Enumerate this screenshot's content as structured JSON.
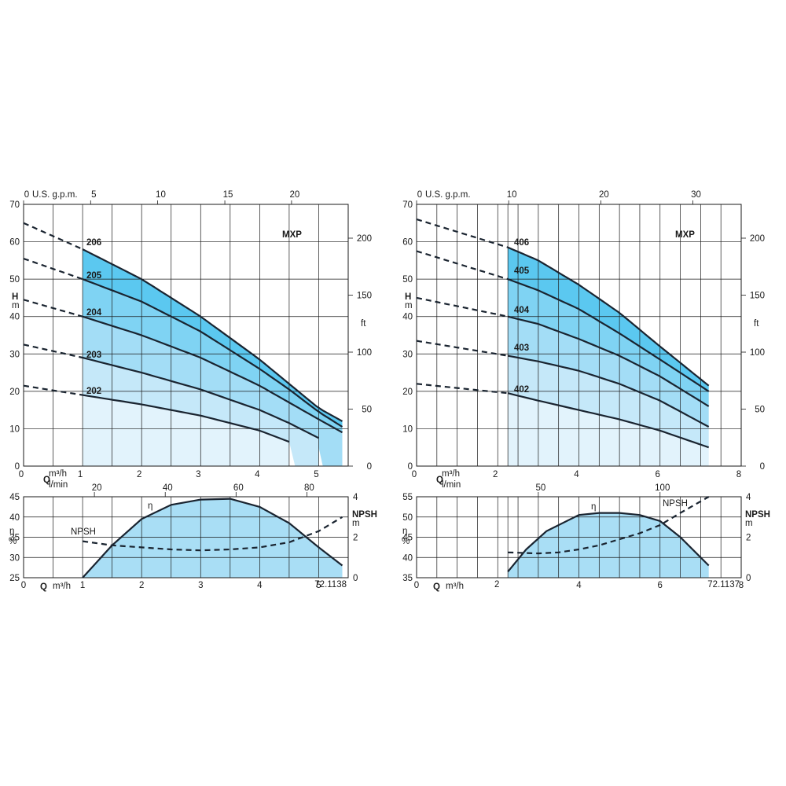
{
  "chart_data": [
    {
      "type": "line",
      "model_label": "MXP",
      "flow_unit": "m³/h",
      "flow_unit_alt": "l/min",
      "gpm_unit": "U.S. g.p.m.",
      "head_symbol": "H",
      "head_unit": "m",
      "head_unit_alt": "ft",
      "q_symbol": "Q",
      "xlim": [
        0,
        5.5
      ],
      "ylim": [
        0,
        70
      ],
      "x_ticks": [
        "0",
        "1",
        "2",
        "3",
        "4",
        "5"
      ],
      "y_ticks": [
        "0",
        "10",
        "20",
        "30",
        "40",
        "50",
        "60",
        "70"
      ],
      "lpm_ticks": [
        "0",
        "20",
        "40",
        "60",
        "80"
      ],
      "gpm_ticks": [
        "0",
        "5",
        "10",
        "15",
        "20"
      ],
      "ft_ticks": [
        "0",
        "50",
        "100",
        "150",
        "200"
      ],
      "operating_range": [
        1,
        5.4
      ],
      "series": [
        {
          "name": "206",
          "x": [
            0,
            1,
            2,
            3,
            4,
            4.5,
            5,
            5.4
          ],
          "y": [
            65,
            58,
            50,
            40,
            28.5,
            22,
            15.5,
            12
          ]
        },
        {
          "name": "205",
          "x": [
            0,
            1,
            2,
            3,
            4,
            4.5,
            5,
            5.4
          ],
          "y": [
            55.5,
            50,
            44,
            36,
            26,
            20.5,
            14.5,
            10.5
          ]
        },
        {
          "name": "204",
          "x": [
            0,
            1,
            2,
            3,
            4,
            4.5,
            5,
            5.4
          ],
          "y": [
            44.5,
            40,
            35,
            29,
            21.5,
            17,
            12.5,
            9
          ]
        },
        {
          "name": "203",
          "x": [
            0,
            1,
            2,
            3,
            4,
            4.5,
            5
          ],
          "y": [
            32.5,
            29,
            25,
            20.5,
            15,
            11.5,
            7.5
          ]
        },
        {
          "name": "202",
          "x": [
            0,
            1,
            2,
            3,
            4,
            4.5
          ],
          "y": [
            21.5,
            19,
            16.5,
            13.5,
            9.5,
            6.5
          ]
        }
      ],
      "efficiency_panel": {
        "eta_symbol": "η",
        "eta_unit": "%",
        "npsh_label": "NPSH",
        "npsh_unit": "m",
        "ylim": [
          25,
          45
        ],
        "y_ticks": [
          "25",
          "30",
          "35",
          "40",
          "45"
        ],
        "npsh_ticks": [
          "0",
          "2",
          "4"
        ],
        "x_ticks": [
          "0",
          "1",
          "2",
          "3",
          "4",
          "5"
        ],
        "code": "72.1138",
        "efficiency": {
          "x": [
            1,
            1.5,
            2,
            2.5,
            3,
            3.5,
            4,
            4.5,
            5,
            5.4
          ],
          "y": [
            25,
            33,
            39.5,
            43,
            44.3,
            44.5,
            42.5,
            38.5,
            32.5,
            28
          ]
        },
        "npsh": {
          "x": [
            1,
            1.5,
            2,
            2.5,
            3,
            3.5,
            4,
            4.5,
            5,
            5.4
          ],
          "y": [
            1.8,
            1.6,
            1.5,
            1.4,
            1.35,
            1.4,
            1.5,
            1.75,
            2.3,
            3.0
          ]
        }
      }
    },
    {
      "type": "line",
      "model_label": "MXP",
      "flow_unit": "m³/h",
      "flow_unit_alt": "l/min",
      "gpm_unit": "U.S. g.p.m.",
      "head_symbol": "H",
      "head_unit": "m",
      "head_unit_alt": "ft",
      "q_symbol": "Q",
      "xlim": [
        0,
        8
      ],
      "ylim": [
        0,
        70
      ],
      "x_ticks": [
        "0",
        "2",
        "4",
        "6",
        "8"
      ],
      "y_ticks": [
        "0",
        "10",
        "20",
        "30",
        "40",
        "50",
        "60",
        "70"
      ],
      "lpm_ticks": [
        "0",
        "50",
        "100"
      ],
      "gpm_ticks": [
        "0",
        "10",
        "20",
        "30"
      ],
      "ft_ticks": [
        "0",
        "50",
        "100",
        "150",
        "200"
      ],
      "operating_range": [
        2.25,
        7.2
      ],
      "series": [
        {
          "name": "406",
          "x": [
            0,
            2.25,
            3,
            4,
            5,
            6,
            7.2
          ],
          "y": [
            66,
            58.5,
            55,
            48.5,
            41,
            32,
            21.5
          ]
        },
        {
          "name": "405",
          "x": [
            0,
            2.25,
            3,
            4,
            5,
            6,
            7.2
          ],
          "y": [
            57.5,
            50,
            47,
            42,
            35.5,
            28.5,
            20
          ]
        },
        {
          "name": "404",
          "x": [
            0,
            2.25,
            3,
            4,
            5,
            6,
            7.2
          ],
          "y": [
            45,
            40,
            38,
            34,
            29.5,
            24,
            16
          ]
        },
        {
          "name": "403",
          "x": [
            0,
            2.25,
            3,
            4,
            5,
            6,
            7.2
          ],
          "y": [
            33.5,
            29.5,
            28,
            25.5,
            22,
            17.5,
            10.5
          ]
        },
        {
          "name": "402",
          "x": [
            0,
            2.25,
            3,
            4,
            5,
            6,
            7.2
          ],
          "y": [
            22,
            19.5,
            17.5,
            15,
            12.5,
            9.5,
            5
          ]
        }
      ],
      "efficiency_panel": {
        "eta_symbol": "η",
        "eta_unit": "%",
        "npsh_label": "NPSH",
        "npsh_unit": "m",
        "ylim": [
          35,
          55
        ],
        "y_ticks": [
          "35",
          "40",
          "45",
          "50",
          "55"
        ],
        "npsh_ticks": [
          "0",
          "2",
          "4"
        ],
        "x_ticks": [
          "0",
          "2",
          "4",
          "6",
          "8"
        ],
        "code": "72.1137",
        "efficiency": {
          "x": [
            2.25,
            2.7,
            3.2,
            4,
            4.5,
            5,
            5.5,
            6,
            6.5,
            7.2
          ],
          "y": [
            36.5,
            42,
            46.5,
            50.5,
            51,
            51,
            50.5,
            49,
            45,
            38
          ]
        },
        "npsh": {
          "x": [
            2.25,
            3,
            3.5,
            4,
            4.5,
            5,
            5.5,
            6,
            6.5,
            7.2
          ],
          "y": [
            1.25,
            1.2,
            1.25,
            1.4,
            1.6,
            1.9,
            2.2,
            2.6,
            3.2,
            4.0
          ]
        }
      }
    }
  ]
}
